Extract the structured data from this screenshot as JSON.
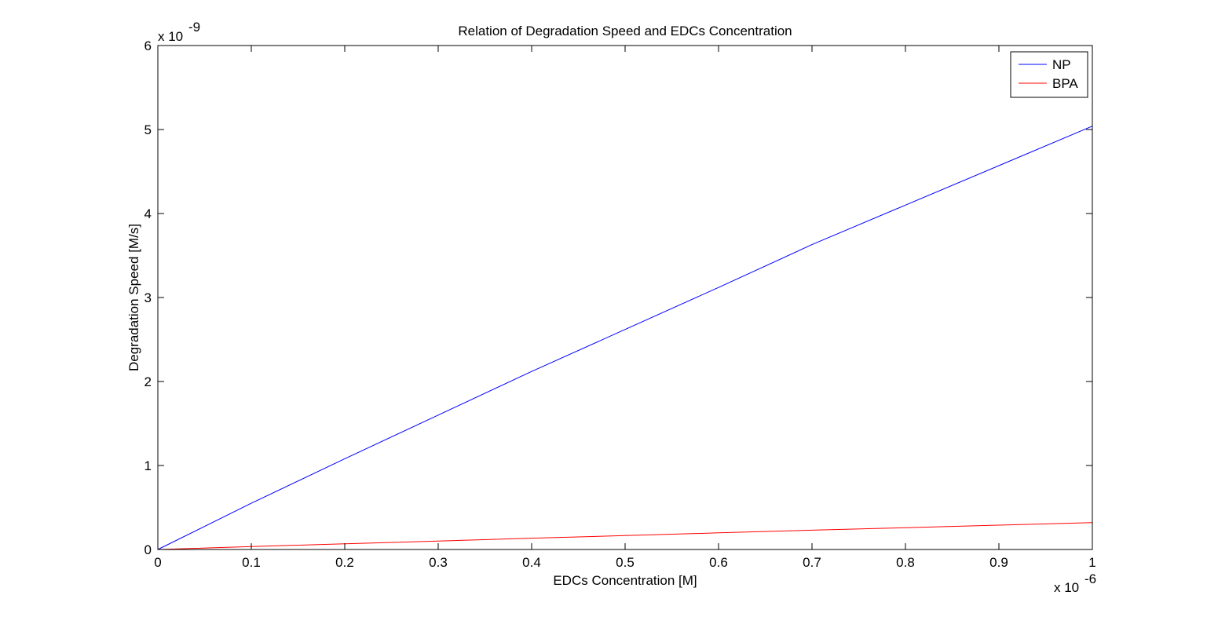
{
  "chart_data": {
    "type": "line",
    "title": "Relation of Degradation Speed and EDCs Concentration",
    "xlabel": "EDCs Concentration [M]",
    "ylabel": "Degradation Speed [M/s]",
    "x_multiplier_label": "x 10",
    "x_multiplier_exponent": "-6",
    "y_multiplier_label": "x 10",
    "y_multiplier_exponent": "-9",
    "xlim": [
      0,
      1e-06
    ],
    "ylim": [
      0,
      6e-09
    ],
    "x_tick_values": [
      0,
      1e-07,
      2e-07,
      3e-07,
      4e-07,
      5e-07,
      6e-07,
      7e-07,
      8e-07,
      9e-07,
      1e-06
    ],
    "x_tick_labels": [
      "0",
      "0.1",
      "0.2",
      "0.3",
      "0.4",
      "0.5",
      "0.6",
      "0.7",
      "0.8",
      "0.9",
      "1"
    ],
    "y_tick_values": [
      0,
      1e-09,
      2e-09,
      3e-09,
      4e-09,
      5e-09,
      6e-09
    ],
    "y_tick_labels": [
      "0",
      "1",
      "2",
      "3",
      "4",
      "5",
      "6"
    ],
    "grid": false,
    "legend_position": "top-right",
    "series": [
      {
        "name": "NP",
        "color": "#0000ff",
        "x": [
          0,
          1e-07,
          2e-07,
          3e-07,
          4e-07,
          5e-07,
          6e-07,
          7e-07,
          8e-07,
          9e-07,
          1e-06
        ],
        "y": [
          0,
          5.5e-10,
          1.08e-09,
          1.6e-09,
          2.12e-09,
          2.62e-09,
          3.12e-09,
          3.63e-09,
          4.1e-09,
          4.57e-09,
          5.04e-09
        ]
      },
      {
        "name": "BPA",
        "color": "#ff0000",
        "x": [
          0,
          1e-07,
          2e-07,
          3e-07,
          4e-07,
          5e-07,
          6e-07,
          7e-07,
          8e-07,
          9e-07,
          1e-06
        ],
        "y": [
          0,
          3.5e-11,
          6.8e-11,
          1e-10,
          1.35e-10,
          1.65e-10,
          1.98e-10,
          2.3e-10,
          2.6e-10,
          2.9e-10,
          3.2e-10
        ]
      }
    ]
  }
}
